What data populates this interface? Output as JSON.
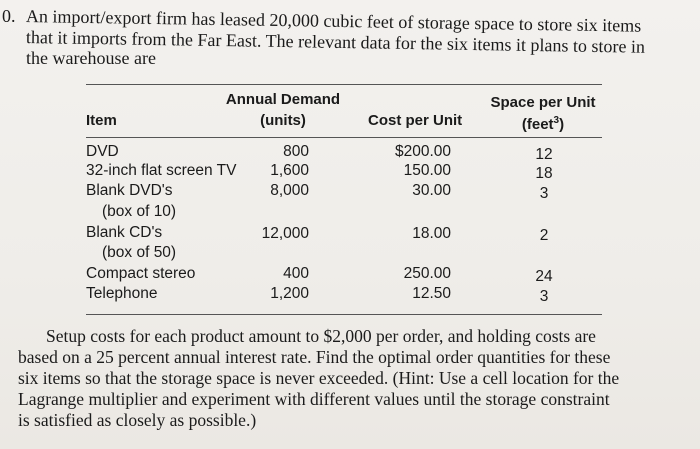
{
  "problem": {
    "number": "0.",
    "intro_lines": [
      "An import/export firm has leased 20,000 cubic feet of storage space to store six items",
      "that it imports from the Far East. The relevant data for the six items it plans to store in",
      "the warehouse are"
    ],
    "outro_lines": [
      "Setup costs for each product amount to $2,000 per order, and holding costs are",
      "based on a 25 percent annual interest rate. Find the optimal order quantities for these",
      "six items so that the storage space is never exceeded. (Hint: Use a cell location for the",
      "Lagrange multiplier and experiment with different values until the storage constraint",
      "is satisfied as closely as possible.)"
    ]
  },
  "table": {
    "headers": {
      "item": "Item",
      "demand_line1": "Annual Demand",
      "demand_line2": "(units)",
      "cost": "Cost per Unit",
      "space_line1": "Space per Unit",
      "space_line2_base": "(feet",
      "space_line2_sup": "3",
      "space_line2_end": ")"
    },
    "rows": [
      {
        "item": "DVD",
        "item_sub": "",
        "demand": "800",
        "cost": "$200.00",
        "space": "12"
      },
      {
        "item": "32-inch flat screen TV",
        "item_sub": "",
        "demand": "1,600",
        "cost": "150.00",
        "space": "18"
      },
      {
        "item": "Blank DVD's",
        "item_sub": "(box of 10)",
        "demand": "8,000",
        "cost": "30.00",
        "space": "3"
      },
      {
        "item": "Blank CD's",
        "item_sub": "(box of 50)",
        "demand": "12,000",
        "cost": "18.00",
        "space": "2"
      },
      {
        "item": "Compact stereo",
        "item_sub": "",
        "demand": "400",
        "cost": "250.00",
        "space": "24"
      },
      {
        "item": "Telephone",
        "item_sub": "",
        "demand": "1,200",
        "cost": "12.50",
        "space": "3"
      }
    ]
  }
}
